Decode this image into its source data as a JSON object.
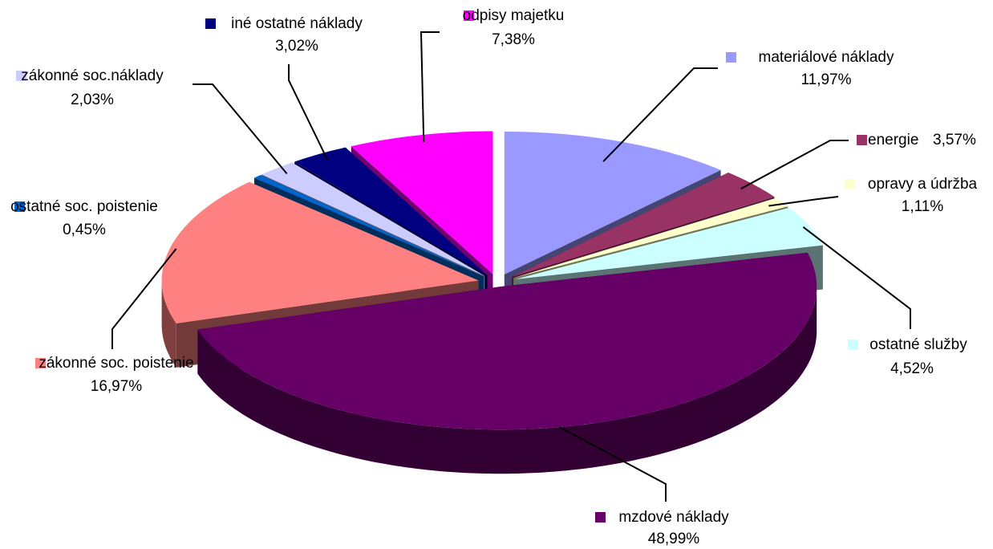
{
  "chart_data": {
    "type": "pie",
    "categories": [
      "materiálové náklady",
      "energie",
      "opravy a údržba",
      "ostatné služby",
      "mzdové náklady",
      "zákonné soc. poistenie",
      "ostatné soc. poistenie",
      "zákonné soc.náklady",
      "iné ostatné náklady",
      "odpisy majetku"
    ],
    "values": [
      11.97,
      3.57,
      1.11,
      4.52,
      48.99,
      16.97,
      0.45,
      2.03,
      3.02,
      7.38
    ],
    "value_labels": [
      "11,97%",
      "3,57%",
      "1,11%",
      "4,52%",
      "48,99%",
      "16,97%",
      "0,45%",
      "2,03%",
      "3,02%",
      "7,38%"
    ],
    "colors": [
      "#9999ff",
      "#993366",
      "#ffffcc",
      "#ccffff",
      "#660066",
      "#ff8080",
      "#0066cc",
      "#ccccff",
      "#000080",
      "#ff00ff"
    ]
  }
}
